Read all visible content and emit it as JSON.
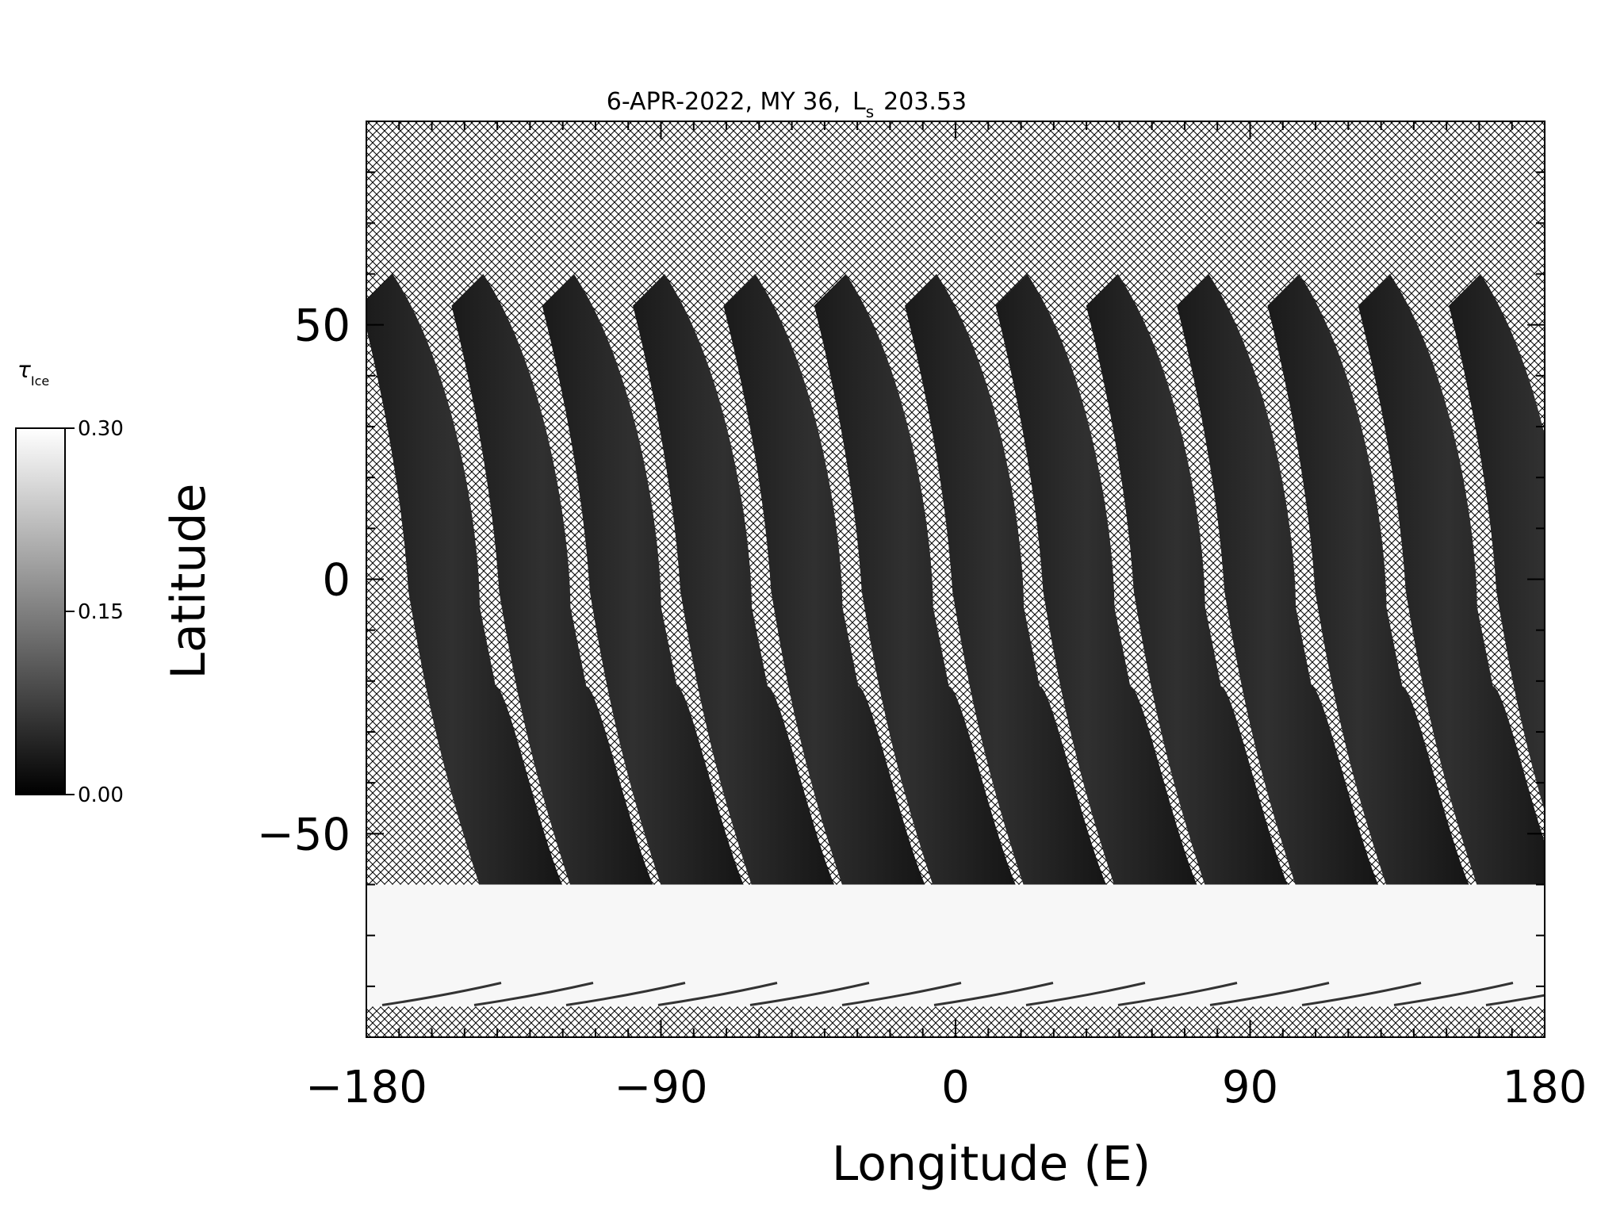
{
  "chart_data": {
    "type": "heatmap",
    "title": "6-APR-2022, MY 36,",
    "title_ls_prefix": "L",
    "title_ls_subscript": "s",
    "title_ls_value": "203.53",
    "xlabel": "Longitude (E)",
    "ylabel": "Latitude",
    "xlim": [
      -180,
      180
    ],
    "ylim": [
      -90,
      90
    ],
    "x_ticks": [
      -180,
      -90,
      0,
      90,
      180
    ],
    "x_tick_labels": [
      "−180",
      "−90",
      "0",
      "90",
      "180"
    ],
    "y_ticks": [
      -50,
      0,
      50
    ],
    "y_tick_labels": [
      "−50",
      "0",
      "50"
    ],
    "x_minor_step": 10,
    "y_minor_step": 10,
    "no_data_pattern": "crosshatch",
    "colorbar": {
      "label": "τ",
      "label_subscript": "Ice",
      "min": 0.0,
      "max": 0.3,
      "ticks": [
        0.0,
        0.15,
        0.3
      ],
      "tick_labels": [
        "0.00",
        "0.15",
        "0.30"
      ],
      "color_low": "#000000",
      "color_high": "#ffffff"
    },
    "orbit_swaths": {
      "count": 13,
      "north_edge_lat": 60,
      "south_edge_lat": -60,
      "start_lon_north": -172,
      "spacing_lon": 27.7,
      "ice_opacity_typical": 0.03
    },
    "south_polar_ice": {
      "lat_from": -60,
      "lat_to": -84,
      "ice_opacity": 0.3
    }
  }
}
